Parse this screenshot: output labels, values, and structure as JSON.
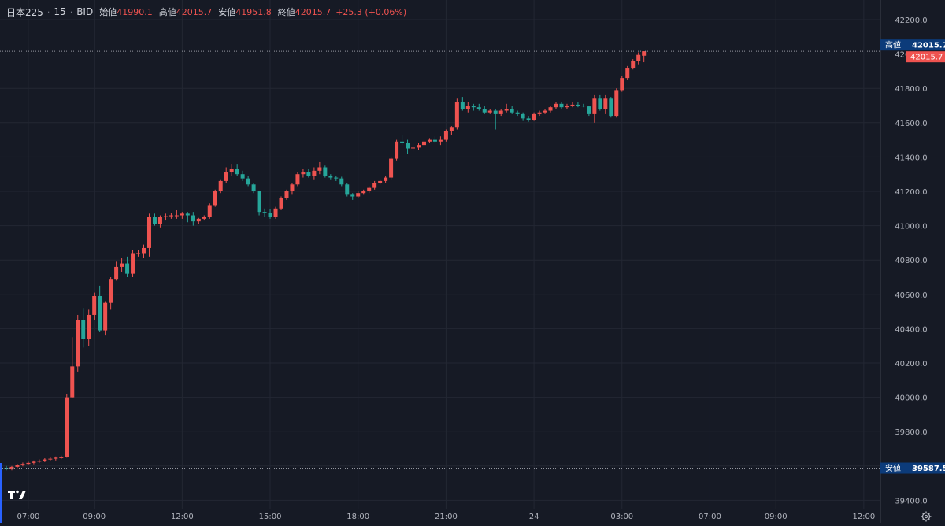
{
  "header": {
    "symbol": "日本225",
    "interval": "15",
    "source": "BID",
    "open_label": "始値",
    "open_value": "41990.1",
    "high_label": "高値",
    "high_value": "42015.7",
    "low_label": "安値",
    "low_value": "41951.8",
    "close_label": "終値",
    "close_value": "42015.7",
    "change": "+25.3 (+0.06%)"
  },
  "markers": {
    "high_label": "高値",
    "high_value": "42015.7",
    "last_value": "42015.7",
    "low_label": "安値",
    "low_value": "39587.5"
  },
  "colors": {
    "background": "#161a25",
    "up": "#ef5350",
    "down": "#26a69a",
    "grid": "#232733",
    "axis_text": "#b2b5be",
    "marker_bg": "#0c3b7a"
  },
  "icons": {
    "logo": "tradingview-logo-icon",
    "settings": "gear-icon"
  },
  "chart_data": {
    "type": "candlestick",
    "interval_minutes": 15,
    "ylim": [
      39350,
      42260
    ],
    "y_ticks": [
      42200,
      42000,
      41800,
      41600,
      41400,
      41200,
      41000,
      40800,
      40600,
      40400,
      40200,
      40000,
      39800,
      39600,
      39400
    ],
    "y_tick_labels": [
      "42200.0",
      "42000.0",
      "41800.0",
      "41600.0",
      "41400.0",
      "41200.0",
      "41000.0",
      "40800.0",
      "40600.0",
      "40400.0",
      "40200.0",
      "40000.0",
      "39800.0",
      "39600.0",
      "39400.0"
    ],
    "x_tick_labels": [
      "07:00",
      "09:00",
      "12:00",
      "15:00",
      "18:00",
      "21:00",
      "24",
      "03:00",
      "07:00",
      "09:00",
      "12:00"
    ],
    "x_tick_bar_index": [
      4,
      16,
      32,
      48,
      64,
      80,
      96,
      112,
      128,
      140,
      156
    ],
    "candles": [
      [
        39590,
        39600,
        39575,
        39585
      ],
      [
        39585,
        39600,
        39575,
        39595
      ],
      [
        39595,
        39612,
        39588,
        39605
      ],
      [
        39605,
        39620,
        39598,
        39612
      ],
      [
        39612,
        39625,
        39605,
        39618
      ],
      [
        39618,
        39632,
        39610,
        39625
      ],
      [
        39625,
        39638,
        39618,
        39630
      ],
      [
        39630,
        39645,
        39622,
        39638
      ],
      [
        39638,
        39650,
        39628,
        39642
      ],
      [
        39642,
        39655,
        39632,
        39648
      ],
      [
        39648,
        39660,
        39640,
        39650
      ],
      [
        39650,
        40020,
        39648,
        40000
      ],
      [
        40000,
        40350,
        39995,
        40180
      ],
      [
        40180,
        40480,
        40150,
        40450
      ],
      [
        40450,
        40520,
        40290,
        40340
      ],
      [
        40340,
        40510,
        40300,
        40480
      ],
      [
        40480,
        40610,
        40450,
        40590
      ],
      [
        40590,
        40650,
        40380,
        40390
      ],
      [
        40390,
        40560,
        40360,
        40550
      ],
      [
        40550,
        40700,
        40510,
        40690
      ],
      [
        40690,
        40790,
        40680,
        40760
      ],
      [
        40760,
        40810,
        40730,
        40780
      ],
      [
        40780,
        40820,
        40700,
        40720
      ],
      [
        40720,
        40860,
        40700,
        40840
      ],
      [
        40840,
        40860,
        40820,
        40840
      ],
      [
        40840,
        40890,
        40810,
        40870
      ],
      [
        40870,
        41070,
        40820,
        41050
      ],
      [
        41050,
        41070,
        41000,
        41010
      ],
      [
        41010,
        41060,
        40990,
        41050
      ],
      [
        41050,
        41070,
        41030,
        41055
      ],
      [
        41055,
        41075,
        41040,
        41060
      ],
      [
        41060,
        41090,
        41040,
        41060
      ],
      [
        41060,
        41080,
        41040,
        41070
      ],
      [
        41070,
        41080,
        41020,
        41060
      ],
      [
        41060,
        41080,
        41000,
        41025
      ],
      [
        41025,
        41045,
        41010,
        41040
      ],
      [
        41040,
        41060,
        41030,
        41050
      ],
      [
        41050,
        41130,
        41040,
        41120
      ],
      [
        41120,
        41210,
        41110,
        41200
      ],
      [
        41200,
        41270,
        41190,
        41260
      ],
      [
        41260,
        41340,
        41250,
        41310
      ],
      [
        41310,
        41360,
        41290,
        41330
      ],
      [
        41330,
        41360,
        41290,
        41300
      ],
      [
        41300,
        41320,
        41260,
        41275
      ],
      [
        41275,
        41290,
        41230,
        41240
      ],
      [
        41240,
        41250,
        41190,
        41200
      ],
      [
        41200,
        41205,
        41060,
        41080
      ],
      [
        41080,
        41100,
        41050,
        41075
      ],
      [
        41075,
        41095,
        41040,
        41050
      ],
      [
        41050,
        41110,
        41040,
        41100
      ],
      [
        41100,
        41170,
        41090,
        41160
      ],
      [
        41160,
        41210,
        41150,
        41200
      ],
      [
        41200,
        41250,
        41180,
        41240
      ],
      [
        41240,
        41310,
        41230,
        41300
      ],
      [
        41300,
        41330,
        41280,
        41310
      ],
      [
        41310,
        41330,
        41280,
        41290
      ],
      [
        41290,
        41340,
        41270,
        41320
      ],
      [
        41320,
        41370,
        41300,
        41340
      ],
      [
        41340,
        41350,
        41280,
        41290
      ],
      [
        41290,
        41300,
        41270,
        41280
      ],
      [
        41280,
        41290,
        41260,
        41275
      ],
      [
        41275,
        41285,
        41230,
        41240
      ],
      [
        41240,
        41250,
        41170,
        41180
      ],
      [
        41180,
        41190,
        41150,
        41170
      ],
      [
        41170,
        41200,
        41160,
        41190
      ],
      [
        41190,
        41210,
        41180,
        41200
      ],
      [
        41200,
        41230,
        41190,
        41220
      ],
      [
        41220,
        41260,
        41210,
        41250
      ],
      [
        41250,
        41270,
        41240,
        41260
      ],
      [
        41260,
        41290,
        41250,
        41280
      ],
      [
        41280,
        41400,
        41270,
        41390
      ],
      [
        41390,
        41500,
        41380,
        41490
      ],
      [
        41490,
        41530,
        41470,
        41480
      ],
      [
        41480,
        41500,
        41420,
        41450
      ],
      [
        41450,
        41480,
        41430,
        41455
      ],
      [
        41455,
        41480,
        41440,
        41470
      ],
      [
        41470,
        41500,
        41455,
        41490
      ],
      [
        41490,
        41510,
        41480,
        41500
      ],
      [
        41500,
        41520,
        41480,
        41490
      ],
      [
        41490,
        41520,
        41470,
        41500
      ],
      [
        41500,
        41560,
        41490,
        41550
      ],
      [
        41550,
        41580,
        41530,
        41575
      ],
      [
        41575,
        41740,
        41560,
        41720
      ],
      [
        41720,
        41750,
        41670,
        41680
      ],
      [
        41680,
        41720,
        41660,
        41700
      ],
      [
        41700,
        41710,
        41670,
        41690
      ],
      [
        41690,
        41710,
        41670,
        41680
      ],
      [
        41680,
        41700,
        41650,
        41660
      ],
      [
        41660,
        41680,
        41650,
        41670
      ],
      [
        41670,
        41680,
        41560,
        41650
      ],
      [
        41650,
        41680,
        41640,
        41670
      ],
      [
        41670,
        41710,
        41660,
        41680
      ],
      [
        41680,
        41700,
        41650,
        41660
      ],
      [
        41660,
        41670,
        41640,
        41650
      ],
      [
        41650,
        41660,
        41610,
        41625
      ],
      [
        41625,
        41640,
        41605,
        41615
      ],
      [
        41615,
        41660,
        41610,
        41650
      ],
      [
        41650,
        41670,
        41640,
        41660
      ],
      [
        41660,
        41680,
        41650,
        41670
      ],
      [
        41670,
        41700,
        41660,
        41690
      ],
      [
        41690,
        41720,
        41680,
        41710
      ],
      [
        41710,
        41720,
        41680,
        41690
      ],
      [
        41690,
        41710,
        41680,
        41700
      ],
      [
        41700,
        41720,
        41690,
        41705
      ],
      [
        41705,
        41720,
        41690,
        41700
      ],
      [
        41700,
        41710,
        41690,
        41695
      ],
      [
        41695,
        41700,
        41640,
        41650
      ],
      [
        41650,
        41760,
        41600,
        41740
      ],
      [
        41740,
        41760,
        41670,
        41680
      ],
      [
        41680,
        41760,
        41650,
        41740
      ],
      [
        41740,
        41750,
        41630,
        41640
      ],
      [
        41640,
        41800,
        41630,
        41790
      ],
      [
        41790,
        41870,
        41780,
        41860
      ],
      [
        41860,
        41930,
        41850,
        41920
      ],
      [
        41920,
        41970,
        41910,
        41960
      ],
      [
        41960,
        42010,
        41940,
        41995
      ],
      [
        41990,
        42016,
        41952,
        42016
      ]
    ]
  }
}
